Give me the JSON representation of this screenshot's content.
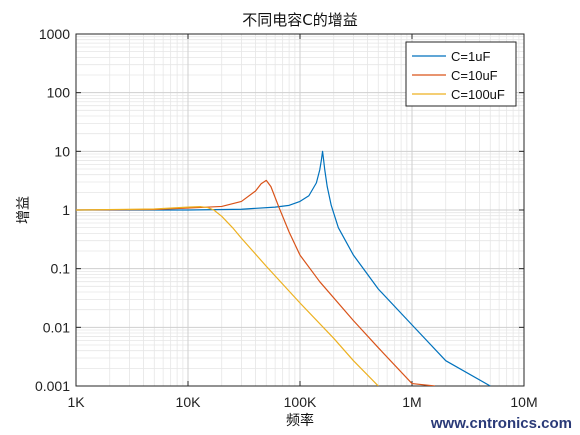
{
  "chart_data": {
    "type": "line",
    "title": "不同电容C的增益",
    "xlabel": "频率",
    "ylabel": "增益",
    "x_scale": "log",
    "y_scale": "log",
    "xlim": [
      1000,
      10000000
    ],
    "ylim": [
      0.001,
      1000
    ],
    "x_ticks": [
      1000,
      10000,
      100000,
      1000000,
      10000000
    ],
    "x_tick_labels": [
      "1K",
      "10K",
      "100K",
      "1M",
      "10M"
    ],
    "y_ticks": [
      0.001,
      0.01,
      0.1,
      1,
      10,
      100,
      1000
    ],
    "y_tick_labels": [
      "0.001",
      "0.01",
      "0.1",
      "1",
      "10",
      "100",
      "1000"
    ],
    "grid": true,
    "minor_grid": true,
    "legend_position": "top-right",
    "series": [
      {
        "name": "C=1uF",
        "color": "#0072BD",
        "x": [
          1000,
          10000,
          30000,
          60000,
          80000,
          100000,
          120000,
          140000,
          150000,
          155000,
          159000,
          162000,
          166000,
          175000,
          190000,
          220000,
          300000,
          500000,
          1000000,
          2000000,
          5000000
        ],
        "y": [
          1.0,
          1.0,
          1.03,
          1.12,
          1.2,
          1.4,
          1.75,
          2.9,
          4.8,
          7.0,
          10.0,
          7.5,
          5.0,
          2.5,
          1.2,
          0.5,
          0.17,
          0.045,
          0.011,
          0.0027,
          0.001
        ]
      },
      {
        "name": "C=10uF",
        "color": "#D95319",
        "x": [
          1000,
          5000,
          10000,
          20000,
          30000,
          40000,
          45000,
          50000,
          55000,
          65000,
          80000,
          100000,
          150000,
          300000,
          500000,
          1000000,
          1600000
        ],
        "y": [
          1.0,
          1.02,
          1.08,
          1.15,
          1.4,
          2.1,
          2.8,
          3.2,
          2.5,
          1.1,
          0.42,
          0.17,
          0.06,
          0.013,
          0.0045,
          0.0011,
          0.001
        ]
      },
      {
        "name": "C=100uF",
        "color": "#EDB120",
        "x": [
          1000,
          5000,
          10000,
          13000,
          15000,
          17000,
          20000,
          25000,
          30000,
          50000,
          100000,
          200000,
          300000,
          500000
        ],
        "y": [
          1.0,
          1.04,
          1.12,
          1.14,
          1.1,
          1.0,
          0.78,
          0.5,
          0.33,
          0.11,
          0.026,
          0.0065,
          0.0027,
          0.001
        ]
      }
    ]
  },
  "watermark": "www.cntronics.com"
}
